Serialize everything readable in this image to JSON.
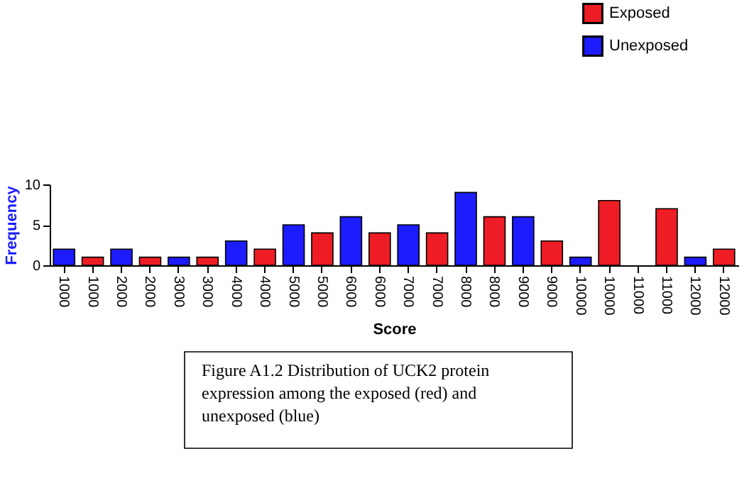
{
  "chart_data": {
    "type": "bar",
    "xlabel": "Score",
    "ylabel": "Frequency",
    "categories": [
      "1000",
      "1000",
      "2000",
      "2000",
      "3000",
      "3000",
      "4000",
      "4000",
      "5000",
      "5000",
      "6000",
      "6000",
      "7000",
      "7000",
      "8000",
      "8000",
      "9000",
      "9000",
      "10000",
      "10000",
      "11000",
      "11000",
      "12000",
      "12000"
    ],
    "series": [
      {
        "name": "Exposed",
        "color": "#ee1c24",
        "values": [
          null,
          1,
          null,
          1,
          null,
          1,
          null,
          2,
          null,
          4,
          null,
          4,
          null,
          4,
          null,
          6,
          null,
          3,
          null,
          8,
          null,
          7,
          null,
          2
        ]
      },
      {
        "name": "Unexposed",
        "color": "#1c1cff",
        "values": [
          2,
          null,
          2,
          null,
          1,
          null,
          3,
          null,
          5,
          null,
          6,
          null,
          5,
          null,
          9,
          null,
          6,
          null,
          1,
          null,
          null,
          null,
          1,
          null
        ]
      }
    ],
    "ylim": [
      0,
      10
    ],
    "yticks": [
      0,
      5,
      10
    ],
    "grid": false,
    "legend": "top right",
    "annotations": [
      "Figure A1.2 Distribution of UCK2 protein expression among the exposed (red) and unexposed (blue)"
    ]
  }
}
